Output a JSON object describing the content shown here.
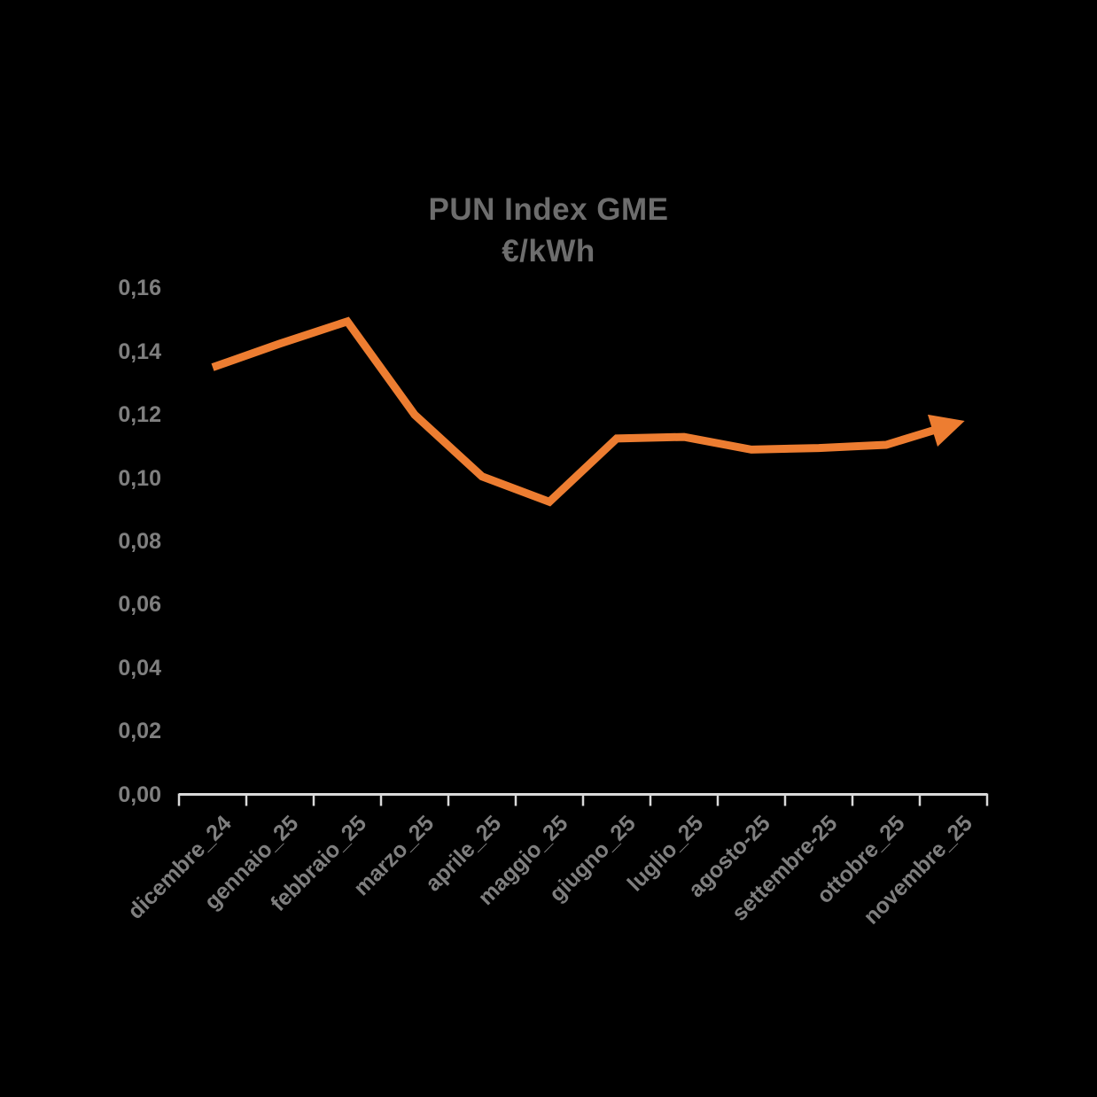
{
  "page": {
    "background_color": "#000000"
  },
  "chart_data": {
    "type": "line",
    "title": "PUN Index GME",
    "subtitle": "€/kWh",
    "categories": [
      "dicembre_24",
      "gennaio_25",
      "febbraio_25",
      "marzo_25",
      "aprile_25",
      "maggio_25",
      "giugno_25",
      "luglio_25",
      "agosto-25",
      "settembre-25",
      "ottobre_25",
      "novembre_25"
    ],
    "series": [
      {
        "name": "PUN Index GME",
        "values": [
          0.135,
          0.1425,
          0.1495,
          0.12,
          0.1005,
          0.0925,
          0.1125,
          0.113,
          0.109,
          0.1095,
          0.1105,
          0.117
        ]
      }
    ],
    "ylim": [
      0,
      0.16
    ],
    "ytick_step": 0.02,
    "ytick_labels": [
      "0,00",
      "0,02",
      "0,04",
      "0,06",
      "0,08",
      "0,10",
      "0,12",
      "0,14",
      "0,16"
    ],
    "xlabel": "",
    "ylabel": "",
    "grid": false,
    "legend_position": "none",
    "arrow_end": true,
    "colors": {
      "line": "#ED7D31",
      "axis": "#D9D9D9",
      "axis_labels": "#7F7F7F",
      "title": "#6D6D6D"
    }
  }
}
